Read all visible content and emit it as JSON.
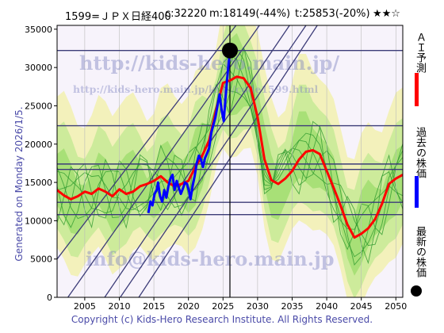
{
  "header": {
    "ticker": "1599=ＪＰＸ日経400",
    "current": "c:32220",
    "max": "m:18149(-44%)",
    "target": "t:25853(-20%)",
    "stars": "★★☆"
  },
  "side_text": "Generated on Monday 2026/1/5.",
  "footer": "Copyright (c) Kids-Hero Research Institute. All Rights Reserved.",
  "watermarks": [
    "http://kids-hero.main.jp/",
    "http://kids-hero.main.jp/kids/code1599.html",
    "info@kids-hero.main.jp"
  ],
  "legend": {
    "ai_label": "ＡＩ予測",
    "past_label": "過去の株価",
    "latest_label": "最新の株価",
    "ai_color": "#ff0000",
    "past_color": "#0000ff",
    "latest_color": "#000000"
  },
  "chart_data": {
    "type": "line",
    "xlim": [
      2001,
      2051
    ],
    "ylim": [
      0,
      35500
    ],
    "x_ticks": [
      2005,
      2010,
      2015,
      2020,
      2025,
      2030,
      2035,
      2040,
      2045,
      2050
    ],
    "y_ticks": [
      0,
      5000,
      10000,
      15000,
      20000,
      25000,
      30000,
      35000
    ],
    "horizontal_levels": [
      32220,
      22400,
      17400,
      16700,
      12400,
      10800
    ],
    "vertical_marker_x": 2026.0,
    "trend_channel_lines": [
      [
        [
          2001,
          -2000
        ],
        [
          2033,
          39000
        ]
      ],
      [
        [
          2006,
          -2500
        ],
        [
          2035,
          36000
        ]
      ],
      [
        [
          2009,
          -1500
        ],
        [
          2037,
          35500
        ]
      ],
      [
        [
          2011,
          -2500
        ],
        [
          2039,
          36000
        ]
      ],
      [
        [
          2001,
          5000
        ],
        [
          2029,
          38000
        ]
      ]
    ],
    "series": [
      {
        "name": "ＡＩ予測",
        "color": "#ff0000",
        "x": [
          2001,
          2002,
          2003,
          2004,
          2005,
          2006,
          2007,
          2008,
          2009,
          2010,
          2011,
          2012,
          2013,
          2014,
          2015,
          2016,
          2017,
          2018,
          2019,
          2020,
          2021,
          2022,
          2023,
          2024,
          2025,
          2026,
          2027,
          2028,
          2029,
          2030,
          2031,
          2032,
          2033,
          2034,
          2035,
          2036,
          2037,
          2038,
          2039,
          2040,
          2041,
          2042,
          2043,
          2044,
          2045,
          2046,
          2047,
          2048,
          2049,
          2050,
          2051
        ],
        "values": [
          14000,
          13300,
          12800,
          13200,
          13800,
          13500,
          14200,
          13800,
          13200,
          14100,
          13500,
          13800,
          14500,
          14800,
          15200,
          15800,
          15000,
          14500,
          14800,
          15200,
          17000,
          18500,
          20500,
          24500,
          28000,
          28300,
          28800,
          28600,
          27300,
          23500,
          18000,
          15300,
          14800,
          15500,
          16500,
          18000,
          19000,
          19200,
          18700,
          16500,
          14300,
          12000,
          9500,
          7800,
          8300,
          9000,
          10200,
          12200,
          14800,
          15500,
          16000
        ]
      },
      {
        "name": "過去の株価",
        "color": "#0000ff",
        "x": [
          2014.2,
          2014.5,
          2014.8,
          2015.1,
          2015.4,
          2015.6,
          2015.9,
          2016.2,
          2016.5,
          2016.8,
          2017.1,
          2017.4,
          2017.7,
          2018.0,
          2018.3,
          2018.6,
          2018.9,
          2019.2,
          2019.5,
          2019.8,
          2020.1,
          2020.3,
          2020.6,
          2020.9,
          2021.2,
          2021.5,
          2021.8,
          2022.1,
          2022.4,
          2022.7,
          2023.0,
          2023.3,
          2023.6,
          2023.9,
          2024.2,
          2024.5,
          2024.8,
          2025.1,
          2025.4,
          2025.7,
          2026.0
        ],
        "values": [
          11000,
          12500,
          12000,
          13500,
          14000,
          15000,
          13200,
          12500,
          14000,
          13000,
          14500,
          15500,
          16000,
          14000,
          15200,
          14300,
          13500,
          14200,
          15000,
          14800,
          13800,
          12800,
          14500,
          15800,
          17500,
          18500,
          18000,
          17000,
          18200,
          18800,
          19500,
          21500,
          22500,
          23500,
          25000,
          26500,
          24500,
          23000,
          26500,
          29500,
          32220
        ]
      }
    ],
    "latest_point": {
      "x": 2026.0,
      "y": 32220
    }
  }
}
